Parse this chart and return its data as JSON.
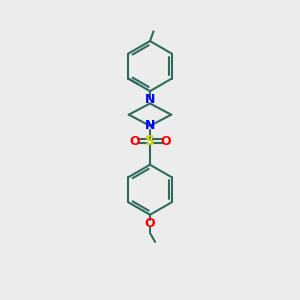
{
  "background_color": "#ececec",
  "bond_color": "#2d6b5e",
  "nitrogen_color": "#0000ff",
  "sulfur_color": "#cccc00",
  "oxygen_color": "#ff0000",
  "line_width": 1.5,
  "figsize": [
    3.0,
    3.0
  ],
  "dpi": 100,
  "xlim": [
    0,
    6
  ],
  "ylim": [
    0,
    10
  ]
}
